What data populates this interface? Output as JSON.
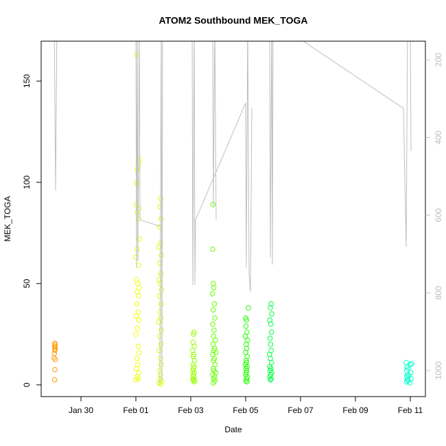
{
  "chart_data": {
    "type": "scatter",
    "title": "ATOM2 Southbound MEK_TOGA",
    "xlabel": "Date",
    "ylabel": "MEK_TOGA",
    "xlim": [
      28.55,
      42.55
    ],
    "xticks": [
      {
        "value": 30,
        "label": "Jan 30"
      },
      {
        "value": 32,
        "label": "Feb 01"
      },
      {
        "value": 34,
        "label": "Feb 03"
      },
      {
        "value": 36,
        "label": "Feb 05"
      },
      {
        "value": 38,
        "label": "Feb 07"
      },
      {
        "value": 40,
        "label": "Feb 09"
      },
      {
        "value": 42,
        "label": "Feb 11"
      }
    ],
    "ylim": [
      -5.8,
      169.7
    ],
    "yticks": [
      0,
      50,
      100,
      150
    ],
    "y2lim": [
      1067,
      152
    ],
    "y2ticks": [
      200,
      400,
      600,
      800,
      1000
    ],
    "series": [
      {
        "color": "#FF9900",
        "x": [
          29.05,
          29.06,
          29.04,
          29.05,
          29.06,
          29.05,
          29.03,
          29.02,
          29.06,
          29.05,
          29.04
        ],
        "values": [
          20.5,
          19.8,
          19,
          18.3,
          17.5,
          17,
          15.5,
          13.3,
          12.5,
          7.5,
          2.5
        ]
      },
      {
        "color": "#EEFF00",
        "x": [
          32.03,
          32.1,
          32.12,
          32.08,
          32.05,
          32.02,
          32.07,
          32.01,
          32.11,
          32.06,
          32.09,
          32.13,
          32.04,
          32.0,
          32.1,
          32.02,
          32.07,
          32.12,
          32.05,
          32.1,
          32.03,
          32.08,
          32.01,
          32.11,
          32.06,
          32.0,
          32.09,
          32.12,
          32.04,
          32.07,
          32.02,
          32.1,
          32.05,
          32.08,
          32.0
        ],
        "values": [
          163,
          112,
          110,
          108,
          106,
          100,
          99,
          89,
          87,
          85,
          82,
          72,
          67,
          63,
          59,
          52,
          50,
          48,
          46,
          44,
          40,
          36,
          34,
          32,
          28,
          25,
          19,
          16,
          13,
          10,
          8,
          6,
          4,
          3,
          2.5
        ]
      },
      {
        "color": "#DDFF00",
        "x": [
          32.9,
          32.88,
          32.92,
          32.86,
          32.9,
          32.84,
          32.93,
          32.87,
          32.91,
          32.85,
          32.89,
          32.94,
          32.86,
          32.92,
          32.88,
          32.9,
          32.84,
          32.93,
          32.87,
          32.91,
          32.85,
          32.89,
          32.92,
          32.86,
          32.9,
          32.88,
          32.94,
          32.85,
          32.91
        ],
        "values": [
          92,
          88,
          82,
          78,
          70,
          68,
          64,
          60,
          55,
          52,
          50,
          47,
          44,
          40,
          36,
          33,
          31,
          27,
          24,
          20,
          17,
          13,
          10,
          7,
          5,
          3,
          2,
          1,
          0.5
        ]
      },
      {
        "color": "#99FF00",
        "x": [
          34.12,
          34.1,
          34.08,
          34.13,
          34.07,
          34.11,
          34.09,
          34.14,
          34.08,
          34.12,
          34.1,
          34.07,
          34.13,
          34.09,
          34.11,
          34.08,
          34.12,
          34.1,
          34.14
        ],
        "values": [
          26,
          25,
          21,
          19,
          17,
          15,
          14,
          12,
          10,
          9,
          8,
          7,
          6,
          5,
          4,
          3,
          2.5,
          2,
          1.5
        ]
      },
      {
        "color": "#66FF00",
        "x": [
          34.81,
          34.8,
          34.82,
          34.84,
          34.79,
          34.86,
          34.82,
          34.88,
          34.8,
          34.85,
          34.83,
          34.9,
          34.81,
          34.87,
          34.84,
          34.92,
          34.8,
          34.86,
          34.83,
          34.89,
          34.82,
          34.85,
          34.91,
          34.8,
          34.87,
          34.84,
          34.88,
          34.82
        ],
        "values": [
          89,
          67,
          50,
          48,
          45,
          40,
          37,
          33,
          30,
          27,
          24,
          22,
          20,
          18,
          17,
          16,
          15,
          13,
          12,
          10,
          8,
          7,
          6,
          5,
          4,
          3,
          2,
          1
        ]
      },
      {
        "color": "#22FF00",
        "x": [
          36.1,
          36.0,
          36.03,
          36.01,
          36.05,
          35.99,
          36.07,
          36.02,
          36.04,
          36.0,
          36.06,
          36.02,
          36.03,
          35.99,
          36.05,
          36.01,
          36.04,
          36.02,
          36.0,
          36.06,
          36.03,
          36.01,
          36.05
        ],
        "values": [
          38,
          33,
          32,
          29,
          26,
          24,
          22,
          20,
          18,
          16,
          14,
          12,
          11,
          10,
          9,
          8,
          7,
          6,
          5,
          4,
          3,
          2,
          1.5
        ]
      },
      {
        "color": "#00FF44",
        "x": [
          36.93,
          36.9,
          36.95,
          36.88,
          36.92,
          36.94,
          36.89,
          36.91,
          36.93,
          36.87,
          36.9,
          36.94,
          36.88,
          36.92,
          36.89,
          36.95,
          36.91,
          36.88,
          36.93,
          36.9
        ],
        "values": [
          40,
          38,
          35,
          32,
          30,
          26,
          23,
          20,
          17,
          15,
          13,
          11,
          9,
          8,
          7,
          6,
          5,
          4,
          3,
          2.5
        ]
      },
      {
        "color": "#00FFCC",
        "x": [
          41.85,
          42.05,
          42.0,
          41.88,
          41.92,
          41.86,
          42.02,
          41.9,
          41.95,
          41.87,
          42.03,
          41.89,
          41.93,
          41.86,
          41.98
        ],
        "values": [
          11,
          10.5,
          10,
          9,
          8,
          7,
          6,
          5,
          4.5,
          4,
          3,
          2.5,
          2,
          1.5,
          1
        ]
      },
      {
        "type": "line",
        "axis": "y2",
        "color": "#BEBEBE",
        "x": [
          29.025,
          29.075,
          29.125,
          null,
          32.0,
          32.025,
          32.05,
          32.075,
          32.125,
          32.15,
          32.9,
          32.875,
          32.925,
          32.95,
          32.975,
          null,
          34.05,
          34.075,
          34.125,
          34.15,
          34.175,
          36.0,
          36.025,
          36.075,
          36.125,
          36.175,
          36.225,
          null,
          34.8,
          34.825,
          34.875,
          34.925,
          null,
          36.875,
          36.9,
          36.95,
          36.975,
          37.0,
          41.75,
          41.85,
          41.9,
          42.0,
          42.025
        ],
        "values": [
          100,
          536,
          100,
          null,
          100,
          735,
          100,
          718,
          100,
          612,
          629,
          1036,
          100,
          1027,
          100,
          null,
          100,
          780,
          100,
          780,
          612,
          311,
          735,
          100,
          753,
          797,
          324,
          null,
          100,
          576,
          100,
          612,
          null,
          100,
          709,
          100,
          727,
          100,
          325,
          682,
          100,
          100,
          435
        ]
      }
    ]
  }
}
